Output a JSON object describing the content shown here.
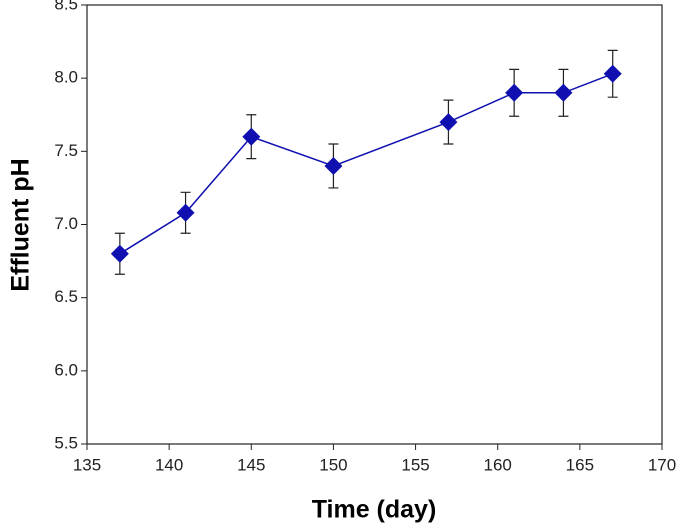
{
  "chart_data": {
    "type": "line",
    "x_label": "Time (day)",
    "y_label": "Effluent pH",
    "x": [
      137,
      141,
      145,
      150,
      157,
      161,
      164,
      167
    ],
    "series": [
      {
        "color": "#1010b0",
        "errors": [
          0.14,
          0.14,
          0.15,
          0.15,
          0.15,
          0.16,
          0.16,
          0.16
        ],
        "values": [
          6.8,
          7.08,
          7.6,
          7.4,
          7.7,
          7.9,
          7.9,
          8.03
        ]
      }
    ],
    "xlim": [
      135,
      170
    ],
    "xticks": [
      135,
      140,
      145,
      150,
      155,
      160,
      165,
      170
    ],
    "ylim": [
      5.5,
      8.5
    ],
    "yticks": [
      {
        "value": 5.5,
        "label": "5.5"
      },
      {
        "value": 6,
        "label": "6.0"
      },
      {
        "value": 6.5,
        "label": "6.5"
      },
      {
        "value": 7,
        "label": "7.0"
      },
      {
        "value": 7.5,
        "label": "7.5"
      },
      {
        "value": 8,
        "label": "8.0"
      },
      {
        "value": 8.5,
        "label": "8.5"
      }
    ],
    "grid": false
  }
}
